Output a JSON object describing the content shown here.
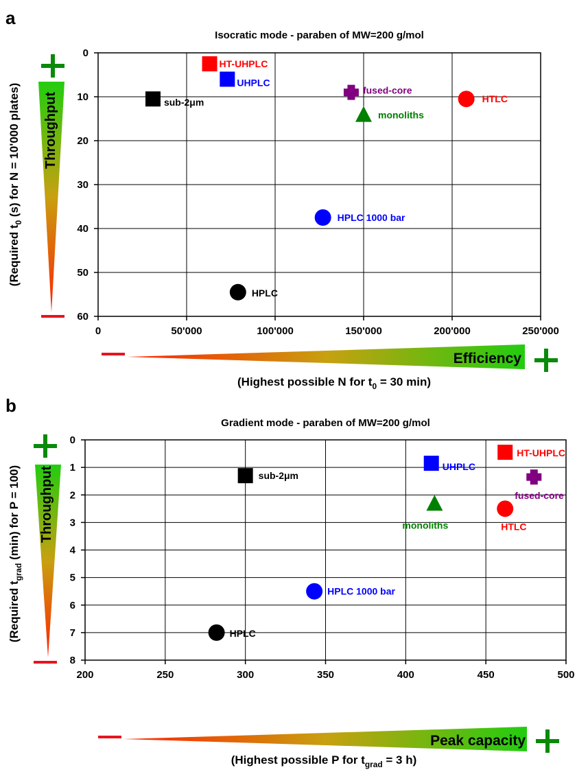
{
  "colors": {
    "red": "#ff0000",
    "blue": "#0000ff",
    "black": "#000000",
    "green": "#008000",
    "purple": "#800080",
    "axis_green": "#0a8a0a",
    "axis_red": "#e8141e"
  },
  "chart_data": [
    {
      "panel_label": "a",
      "type": "scatter",
      "title": "Isocratic mode - paraben of MW=200 g/mol",
      "ylabel_parts": [
        "(Required t",
        "0",
        " (s) for N = 10'000 plates)"
      ],
      "xlabel_parts": [
        "(Highest possible N for t",
        "0",
        " = 30 min)"
      ],
      "xlim": [
        0,
        250000
      ],
      "ylim": [
        0,
        60
      ],
      "y_inverted": true,
      "grid": true,
      "xtick_labels": [
        "0",
        "50'000",
        "100'000",
        "150'000",
        "200'000",
        "250'000"
      ],
      "ytick_labels": [
        "0",
        "10",
        "20",
        "30",
        "40",
        "50",
        "60"
      ],
      "throughput_label": "Throughput",
      "efficiency_label": "Efficiency",
      "points": [
        {
          "label": "HT-UHPLC",
          "x": 63000,
          "y": 2.5,
          "marker": "square",
          "color": "#ff0000"
        },
        {
          "label": "UHPLC",
          "x": 73000,
          "y": 6,
          "marker": "square",
          "color": "#0000ff"
        },
        {
          "label": "sub-2μm",
          "x": 31000,
          "y": 10.5,
          "marker": "square",
          "color": "#000000"
        },
        {
          "label": "fused-core",
          "x": 143000,
          "y": 9,
          "marker": "cross",
          "color": "#800080"
        },
        {
          "label": "monoliths",
          "x": 150000,
          "y": 14,
          "marker": "triangle",
          "color": "#008000"
        },
        {
          "label": "HTLC",
          "x": 208000,
          "y": 10.5,
          "marker": "circle",
          "color": "#ff0000"
        },
        {
          "label": "HPLC 1000 bar",
          "x": 127000,
          "y": 37.5,
          "marker": "circle",
          "color": "#0000ff"
        },
        {
          "label": "HPLC",
          "x": 79000,
          "y": 54.5,
          "marker": "circle",
          "color": "#000000"
        }
      ]
    },
    {
      "panel_label": "b",
      "type": "scatter",
      "title": "Gradient mode - paraben of MW=200 g/mol",
      "ylabel_parts": [
        "(Required t",
        "grad",
        " (min) for P = 100)"
      ],
      "xlabel_parts": [
        "(Highest possible P for t",
        "grad",
        " = 3 h)"
      ],
      "xlim": [
        200,
        500
      ],
      "ylim": [
        0,
        8
      ],
      "y_inverted": true,
      "grid": true,
      "xtick_labels": [
        "200",
        "250",
        "300",
        "350",
        "400",
        "450",
        "500"
      ],
      "ytick_labels": [
        "0",
        "1",
        "2",
        "3",
        "4",
        "5",
        "6",
        "7",
        "8"
      ],
      "throughput_label": "Throughput",
      "efficiency_label": "Peak capacity",
      "points": [
        {
          "label": "HT-UHPLC",
          "x": 462,
          "y": 0.45,
          "marker": "square",
          "color": "#ff0000"
        },
        {
          "label": "UHPLC",
          "x": 416,
          "y": 0.85,
          "marker": "square",
          "color": "#0000ff"
        },
        {
          "label": "sub-2μm",
          "x": 300,
          "y": 1.3,
          "marker": "square",
          "color": "#000000"
        },
        {
          "label": "fused-core",
          "x": 480,
          "y": 1.35,
          "marker": "cross",
          "color": "#800080"
        },
        {
          "label": "monoliths",
          "x": 418,
          "y": 2.3,
          "marker": "triangle",
          "color": "#008000"
        },
        {
          "label": "HTLC",
          "x": 462,
          "y": 2.5,
          "marker": "circle",
          "color": "#ff0000"
        },
        {
          "label": "HPLC 1000 bar",
          "x": 343,
          "y": 5.5,
          "marker": "circle",
          "color": "#0000ff"
        },
        {
          "label": "HPLC",
          "x": 282,
          "y": 7.0,
          "marker": "circle",
          "color": "#000000"
        }
      ]
    }
  ]
}
